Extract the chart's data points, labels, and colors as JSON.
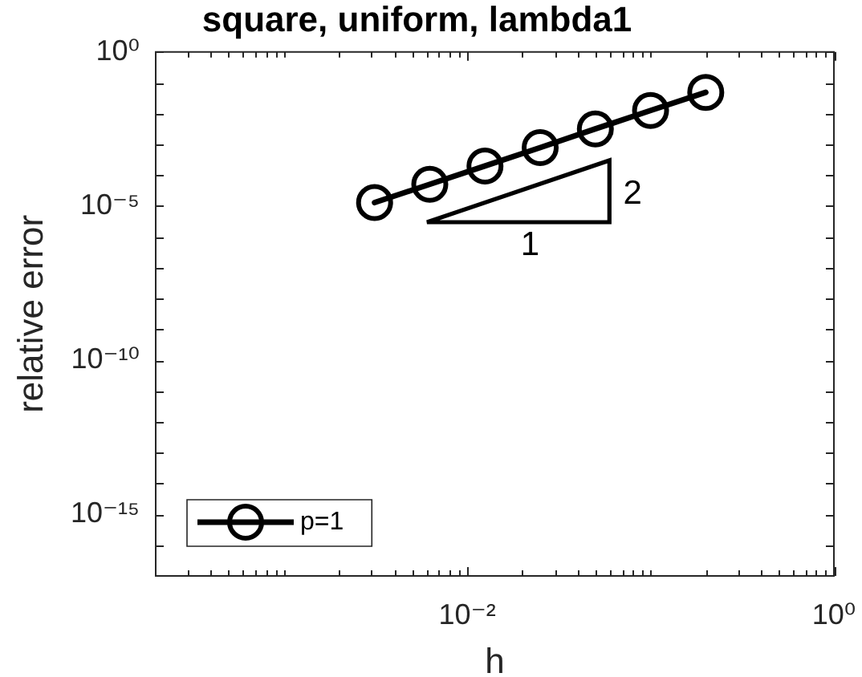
{
  "chart_data": {
    "type": "line",
    "title": "square, uniform, lambda1",
    "xlabel": "h",
    "ylabel": "relative error",
    "log": "xy",
    "xlim": [
      0.0002,
      1
    ],
    "ylim": [
      1e-17,
      1
    ],
    "xticks": [
      {
        "value": 0.0003,
        "label": null
      },
      {
        "value": 0.0004,
        "label": null
      },
      {
        "value": 0.0005,
        "label": null
      },
      {
        "value": 0.0006,
        "label": null
      },
      {
        "value": 0.0007,
        "label": null
      },
      {
        "value": 0.0008,
        "label": null
      },
      {
        "value": 0.0009,
        "label": null
      },
      {
        "value": 0.001,
        "label": null
      },
      {
        "value": 0.002,
        "label": null
      },
      {
        "value": 0.003,
        "label": null
      },
      {
        "value": 0.004,
        "label": null
      },
      {
        "value": 0.005,
        "label": null
      },
      {
        "value": 0.006,
        "label": null
      },
      {
        "value": 0.007,
        "label": null
      },
      {
        "value": 0.008,
        "label": null
      },
      {
        "value": 0.009,
        "label": null
      },
      {
        "value": 0.01,
        "label": "10⁻²"
      },
      {
        "value": 0.02,
        "label": null
      },
      {
        "value": 0.03,
        "label": null
      },
      {
        "value": 0.04,
        "label": null
      },
      {
        "value": 0.05,
        "label": null
      },
      {
        "value": 0.06,
        "label": null
      },
      {
        "value": 0.07,
        "label": null
      },
      {
        "value": 0.08,
        "label": null
      },
      {
        "value": 0.09,
        "label": null
      },
      {
        "value": 0.1,
        "label": null
      },
      {
        "value": 0.2,
        "label": null
      },
      {
        "value": 0.3,
        "label": null
      },
      {
        "value": 0.4,
        "label": null
      },
      {
        "value": 0.5,
        "label": null
      },
      {
        "value": 0.6,
        "label": null
      },
      {
        "value": 0.7,
        "label": null
      },
      {
        "value": 0.8,
        "label": null
      },
      {
        "value": 0.9,
        "label": null
      },
      {
        "value": 1,
        "label": "10⁰"
      }
    ],
    "yticks": [
      {
        "value": 1e-16,
        "label": null
      },
      {
        "value": 1e-15,
        "label": "10⁻¹⁵"
      },
      {
        "value": 1e-14,
        "label": null
      },
      {
        "value": 1e-13,
        "label": null
      },
      {
        "value": 1e-12,
        "label": null
      },
      {
        "value": 1e-11,
        "label": null
      },
      {
        "value": 1e-10,
        "label": "10⁻¹⁰"
      },
      {
        "value": 1e-09,
        "label": null
      },
      {
        "value": 1e-08,
        "label": null
      },
      {
        "value": 1e-07,
        "label": null
      },
      {
        "value": 1e-06,
        "label": null
      },
      {
        "value": 1e-05,
        "label": "10⁻⁵"
      },
      {
        "value": 0.0001,
        "label": null
      },
      {
        "value": 0.001,
        "label": null
      },
      {
        "value": 0.01,
        "label": null
      },
      {
        "value": 0.1,
        "label": null
      },
      {
        "value": 1,
        "label": "10⁰"
      }
    ],
    "grid": false,
    "legend": "bottom left",
    "marker": "circle",
    "line_style": "solid",
    "series": [
      {
        "name": "p=1",
        "color": "#000000",
        "x": [
          0.003125,
          0.00625,
          0.0125,
          0.025,
          0.05,
          0.1,
          0.2
        ],
        "values": [
          1.3e-05,
          5.1e-05,
          0.0002,
          0.00079,
          0.0032,
          0.0126,
          0.049
        ]
      }
    ],
    "annotations": [
      "1",
      "2"
    ]
  }
}
